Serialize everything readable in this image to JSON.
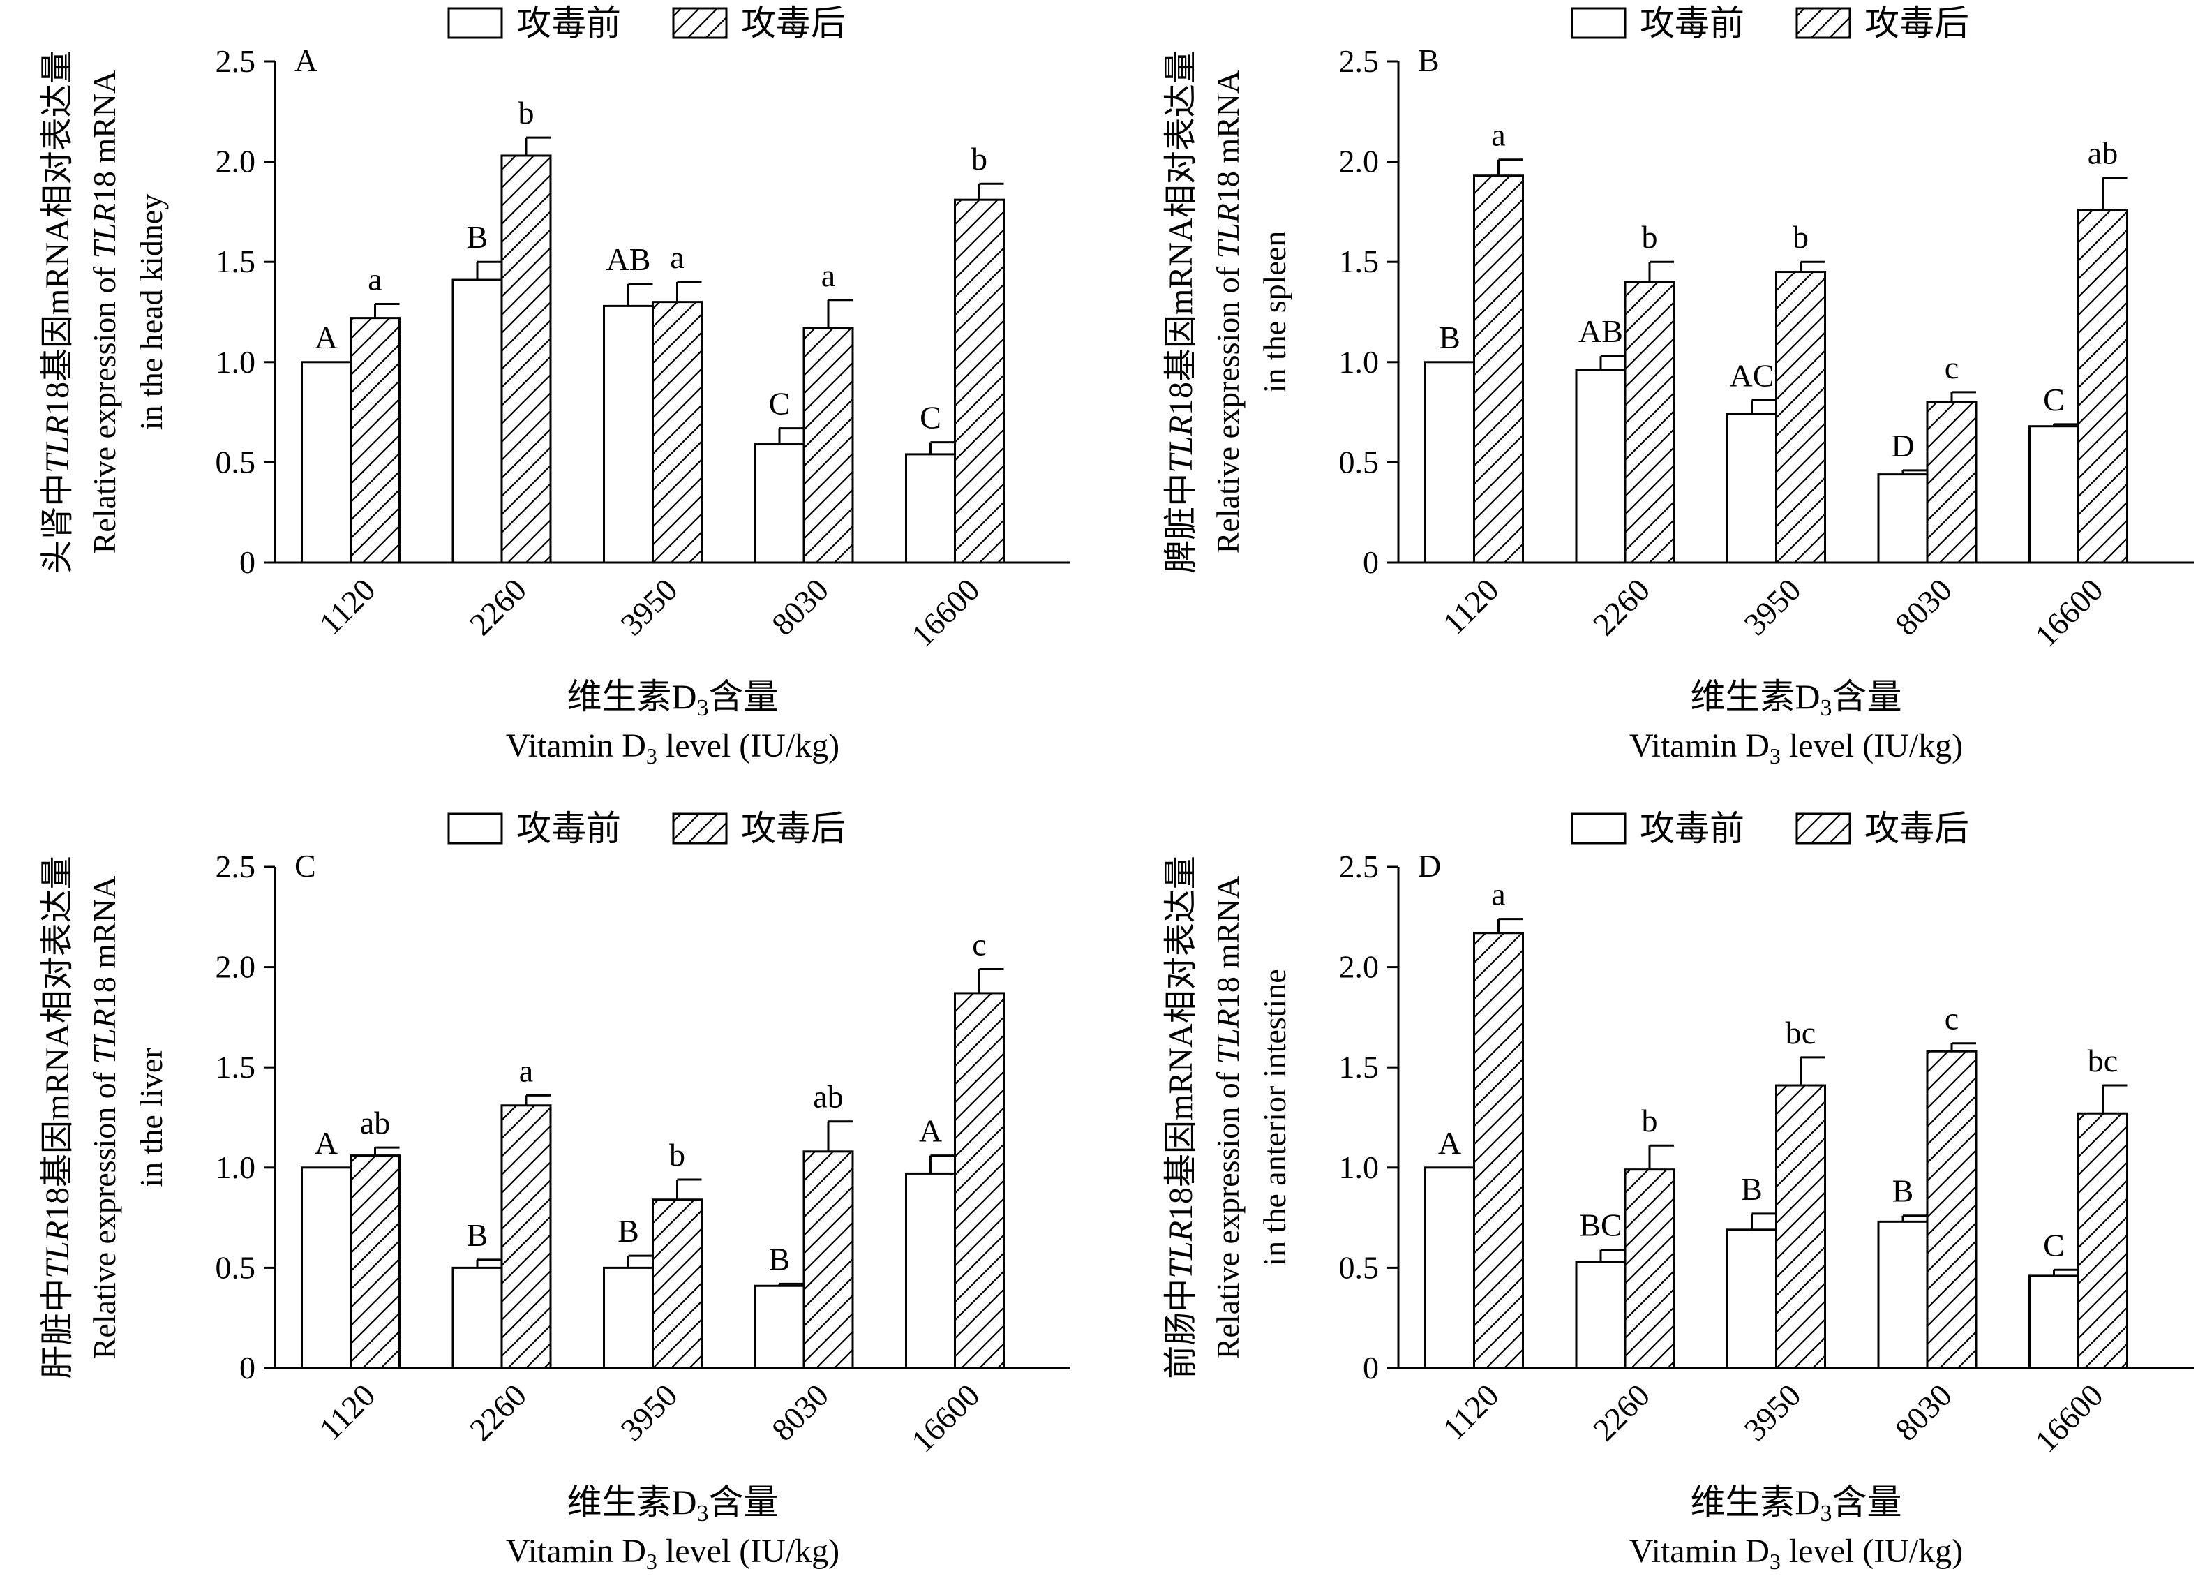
{
  "legend": {
    "before": "攻毒前",
    "after": "攻毒后"
  },
  "chart_data": [
    {
      "type": "bar",
      "panel_label": "A",
      "ylabel_cn_prefix": "头肾中",
      "ylabel_cn_gene": "TLR",
      "ylabel_cn_suffix": "18基因mRNA相对表达量",
      "ylabel_en_prefix": "Relative expression of ",
      "ylabel_en_gene": "TLR",
      "ylabel_en_suffix": "18 mRNA",
      "ylabel_en_line2": "in the head kidney",
      "xlabel_cn_pre": "维生素D",
      "xlabel_cn_sub": "3",
      "xlabel_cn_post": "含量",
      "xlabel_en_pre": "Vitamin D",
      "xlabel_en_sub": "3",
      "xlabel_en_post": " level (IU/kg)",
      "ylim": [
        0,
        2.5
      ],
      "yticks": [
        "0",
        "0.5",
        "1.0",
        "1.5",
        "2.0",
        "2.5"
      ],
      "categories": [
        "1120",
        "2260",
        "3950",
        "8030",
        "16600"
      ],
      "series": [
        {
          "name": "攻毒前",
          "values": [
            1.0,
            1.41,
            1.28,
            0.59,
            0.54
          ],
          "errors": [
            0.0,
            0.09,
            0.11,
            0.08,
            0.06
          ],
          "letters": [
            "A",
            "B",
            "AB",
            "C",
            "C"
          ]
        },
        {
          "name": "攻毒后",
          "values": [
            1.22,
            2.03,
            1.3,
            1.17,
            1.81
          ],
          "errors": [
            0.07,
            0.09,
            0.1,
            0.14,
            0.08
          ],
          "letters": [
            "a",
            "b",
            "a",
            "a",
            "b"
          ]
        }
      ]
    },
    {
      "type": "bar",
      "panel_label": "B",
      "ylabel_cn_prefix": "脾脏中",
      "ylabel_cn_gene": "TLR",
      "ylabel_cn_suffix": "18基因mRNA相对表达量",
      "ylabel_en_prefix": "Relative expression of ",
      "ylabel_en_gene": "TLR",
      "ylabel_en_suffix": "18 mRNA",
      "ylabel_en_line2": "in the spleen",
      "xlabel_cn_pre": "维生素D",
      "xlabel_cn_sub": "3",
      "xlabel_cn_post": "含量",
      "xlabel_en_pre": "Vitamin D",
      "xlabel_en_sub": "3",
      "xlabel_en_post": " level (IU/kg)",
      "ylim": [
        0,
        2.5
      ],
      "yticks": [
        "0",
        "0.5",
        "1.0",
        "1.5",
        "2.0",
        "2.5"
      ],
      "categories": [
        "1120",
        "2260",
        "3950",
        "8030",
        "16600"
      ],
      "series": [
        {
          "name": "攻毒前",
          "values": [
            1.0,
            0.96,
            0.74,
            0.44,
            0.68
          ],
          "errors": [
            0.0,
            0.07,
            0.07,
            0.02,
            0.01
          ],
          "letters": [
            "B",
            "AB",
            "AC",
            "D",
            "C"
          ]
        },
        {
          "name": "攻毒后",
          "values": [
            1.93,
            1.4,
            1.45,
            0.8,
            1.76
          ],
          "errors": [
            0.08,
            0.1,
            0.05,
            0.05,
            0.16
          ],
          "letters": [
            "a",
            "b",
            "b",
            "c",
            "ab"
          ]
        }
      ]
    },
    {
      "type": "bar",
      "panel_label": "C",
      "ylabel_cn_prefix": "肝脏中",
      "ylabel_cn_gene": "TLR",
      "ylabel_cn_suffix": "18基因mRNA相对表达量",
      "ylabel_en_prefix": "Relative expression of ",
      "ylabel_en_gene": "TLR",
      "ylabel_en_suffix": "18 mRNA",
      "ylabel_en_line2": "in the liver",
      "xlabel_cn_pre": "维生素D",
      "xlabel_cn_sub": "3",
      "xlabel_cn_post": "含量",
      "xlabel_en_pre": "Vitamin D",
      "xlabel_en_sub": "3",
      "xlabel_en_post": " level (IU/kg)",
      "ylim": [
        0,
        2.5
      ],
      "yticks": [
        "0",
        "0.5",
        "1.0",
        "1.5",
        "2.0",
        "2.5"
      ],
      "categories": [
        "1120",
        "2260",
        "3950",
        "8030",
        "16600"
      ],
      "series": [
        {
          "name": "攻毒前",
          "values": [
            1.0,
            0.5,
            0.5,
            0.41,
            0.97
          ],
          "errors": [
            0.0,
            0.04,
            0.06,
            0.01,
            0.09
          ],
          "letters": [
            "A",
            "B",
            "B",
            "B",
            "A"
          ]
        },
        {
          "name": "攻毒后",
          "values": [
            1.06,
            1.31,
            0.84,
            1.08,
            1.87
          ],
          "errors": [
            0.04,
            0.05,
            0.1,
            0.15,
            0.12
          ],
          "letters": [
            "ab",
            "a",
            "b",
            "ab",
            "c"
          ]
        }
      ]
    },
    {
      "type": "bar",
      "panel_label": "D",
      "ylabel_cn_prefix": "前肠中",
      "ylabel_cn_gene": "TLR",
      "ylabel_cn_suffix": "18基因mRNA相对表达量",
      "ylabel_en_prefix": "Relative expression of ",
      "ylabel_en_gene": "TLR",
      "ylabel_en_suffix": "18 mRNA",
      "ylabel_en_line2": "in the anterior intestine",
      "xlabel_cn_pre": "维生素D",
      "xlabel_cn_sub": "3",
      "xlabel_cn_post": "含量",
      "xlabel_en_pre": "Vitamin D",
      "xlabel_en_sub": "3",
      "xlabel_en_post": " level (IU/kg)",
      "ylim": [
        0,
        2.5
      ],
      "yticks": [
        "0",
        "0.5",
        "1.0",
        "1.5",
        "2.0",
        "2.5"
      ],
      "categories": [
        "1120",
        "2260",
        "3950",
        "8030",
        "16600"
      ],
      "series": [
        {
          "name": "攻毒前",
          "values": [
            1.0,
            0.53,
            0.69,
            0.73,
            0.46
          ],
          "errors": [
            0.0,
            0.06,
            0.08,
            0.03,
            0.03
          ],
          "letters": [
            "A",
            "BC",
            "B",
            "B",
            "C"
          ]
        },
        {
          "name": "攻毒后",
          "values": [
            2.17,
            0.99,
            1.41,
            1.58,
            1.27
          ],
          "errors": [
            0.07,
            0.12,
            0.14,
            0.04,
            0.14
          ],
          "letters": [
            "a",
            "b",
            "bc",
            "c",
            "bc"
          ]
        }
      ]
    }
  ]
}
